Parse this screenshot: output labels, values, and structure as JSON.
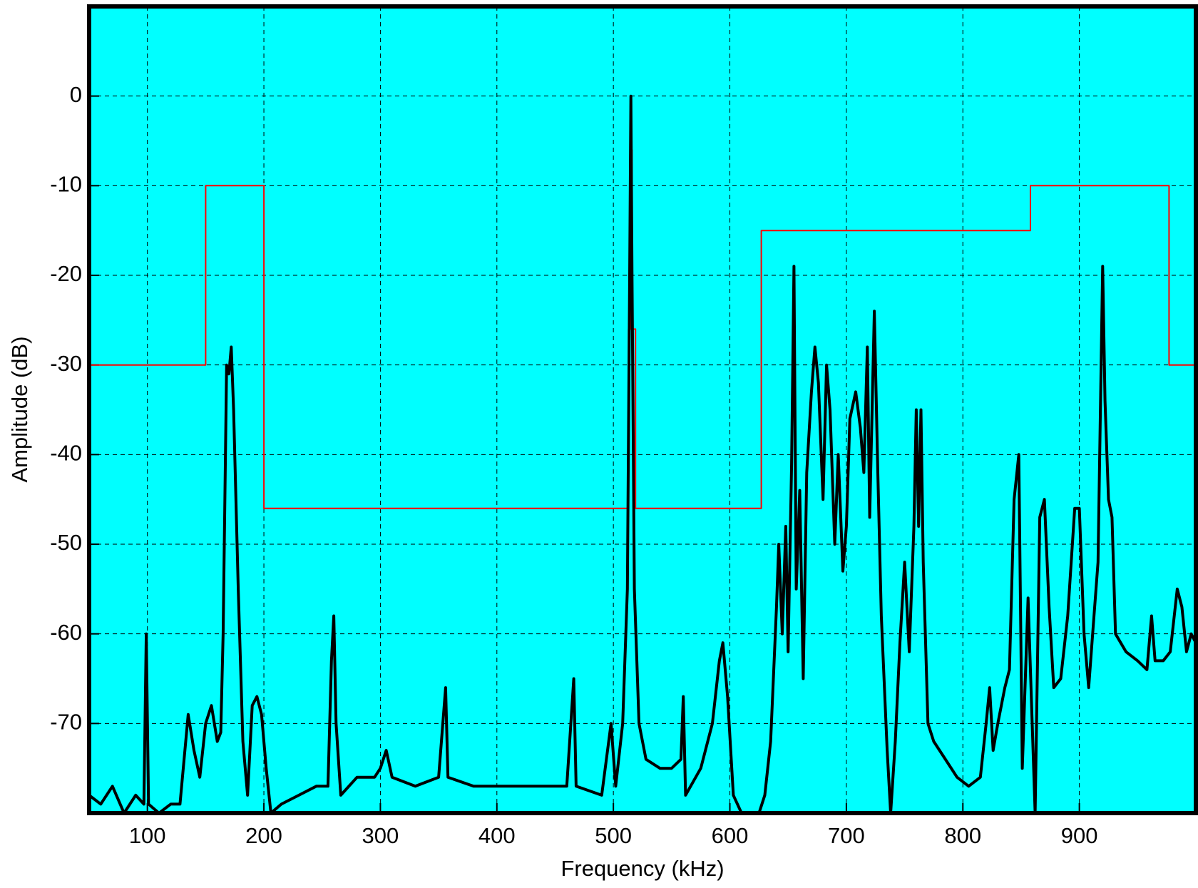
{
  "chart_data": {
    "type": "line",
    "xlabel": "Frequency (kHz)",
    "ylabel": "Amplitude (dB)",
    "xlim": [
      50,
      1000
    ],
    "ylim": [
      -80,
      10
    ],
    "xticks": [
      100,
      200,
      300,
      400,
      500,
      600,
      700,
      800,
      900
    ],
    "yticks": [
      0,
      -10,
      -20,
      -30,
      -40,
      -50,
      -60,
      -70
    ],
    "grid": true,
    "background": "#00ffff",
    "series": [
      {
        "color": "#ff0000",
        "width": 2,
        "x": [
          50,
          150,
          150,
          200,
          200,
          513,
          513,
          515,
          515,
          516,
          516,
          519,
          519,
          627,
          627,
          858,
          858,
          977,
          977,
          1000
        ],
        "values": [
          -30,
          -30,
          -10,
          -10,
          -46,
          -46,
          -26,
          -26,
          -6,
          -6,
          -26,
          -26,
          -46,
          -46,
          -15,
          -15,
          -10,
          -10,
          -30,
          -30
        ]
      },
      {
        "color": "#000000",
        "width": 4,
        "x": [
          50,
          60,
          70,
          80,
          90,
          97,
          99,
          101,
          110,
          120,
          128,
          135,
          140,
          145,
          150,
          155,
          160,
          163,
          165,
          168,
          170,
          172,
          174,
          178,
          182,
          186,
          190,
          194,
          198,
          202,
          206,
          215,
          230,
          245,
          255,
          258,
          260,
          262,
          266,
          280,
          295,
          300,
          305,
          310,
          330,
          350,
          356,
          358,
          380,
          400,
          420,
          440,
          460,
          466,
          468,
          490,
          498,
          502,
          508,
          512,
          514,
          515,
          516,
          518,
          522,
          528,
          540,
          550,
          558,
          560,
          562,
          575,
          585,
          591,
          594,
          598,
          603,
          610,
          625,
          630,
          635,
          640,
          642,
          645,
          648,
          650,
          653,
          655,
          657,
          660,
          663,
          666,
          670,
          673,
          676,
          680,
          683,
          686,
          690,
          693,
          697,
          700,
          703,
          708,
          712,
          715,
          718,
          720,
          724,
          727,
          730,
          735,
          738,
          742,
          746,
          750,
          754,
          758,
          760,
          762,
          764,
          766,
          770,
          775,
          785,
          795,
          805,
          815,
          820,
          823,
          826,
          830,
          836,
          840,
          844,
          848,
          851,
          856,
          862,
          866,
          870,
          874,
          878,
          884,
          890,
          896,
          900,
          904,
          908,
          912,
          916,
          920,
          922,
          925,
          928,
          931,
          940,
          950,
          958,
          962,
          965,
          972,
          978,
          984,
          988,
          992,
          996,
          1000
        ],
        "values": [
          -78,
          -79,
          -77,
          -80,
          -78,
          -79,
          -60,
          -79,
          -80,
          -79,
          -79,
          -69,
          -73,
          -76,
          -70,
          -68,
          -72,
          -71,
          -60,
          -30,
          -31,
          -28,
          -35,
          -55,
          -72,
          -78,
          -68,
          -67,
          -69,
          -75,
          -80,
          -79,
          -78,
          -77,
          -77,
          -63,
          -58,
          -70,
          -78,
          -76,
          -76,
          -75,
          -73,
          -76,
          -77,
          -76,
          -66,
          -76,
          -77,
          -77,
          -77,
          -77,
          -77,
          -65,
          -77,
          -78,
          -70,
          -77,
          -70,
          -55,
          -20,
          0,
          -20,
          -55,
          -70,
          -74,
          -75,
          -75,
          -74,
          -67,
          -78,
          -75,
          -70,
          -63,
          -61,
          -67,
          -78,
          -80,
          -80,
          -78,
          -72,
          -57,
          -50,
          -60,
          -48,
          -62,
          -41,
          -19,
          -55,
          -44,
          -65,
          -42,
          -33,
          -28,
          -32,
          -45,
          -30,
          -35,
          -50,
          -40,
          -53,
          -48,
          -36,
          -33,
          -37,
          -42,
          -28,
          -47,
          -24,
          -42,
          -58,
          -73,
          -80,
          -72,
          -61,
          -52,
          -62,
          -48,
          -35,
          -48,
          -35,
          -52,
          -70,
          -72,
          -74,
          -76,
          -77,
          -76,
          -70,
          -66,
          -73,
          -70,
          -66,
          -64,
          -45,
          -40,
          -75,
          -56,
          -80,
          -47,
          -45,
          -57,
          -66,
          -65,
          -58,
          -46,
          -46,
          -60,
          -66,
          -59,
          -52,
          -19,
          -34,
          -45,
          -47,
          -60,
          -62,
          -63,
          -64,
          -58,
          -63,
          -63,
          -62,
          -55,
          -57,
          -62,
          -60,
          -61
        ]
      }
    ]
  }
}
